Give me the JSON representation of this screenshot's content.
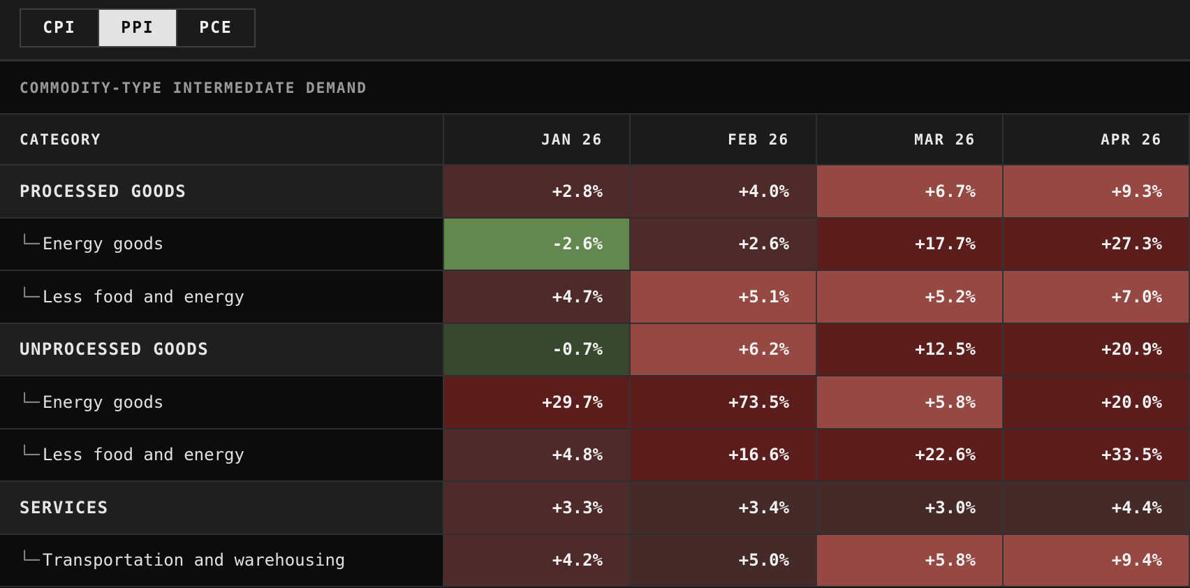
{
  "tabs": [
    {
      "label": "CPI",
      "active": false
    },
    {
      "label": "PPI",
      "active": true
    },
    {
      "label": "PCE",
      "active": false
    }
  ],
  "section_title": "COMMODITY-TYPE INTERMEDIATE DEMAND",
  "columns": {
    "category": "CATEGORY",
    "months": [
      "JAN 26",
      "FEB 26",
      "MAR 26",
      "APR 26"
    ]
  },
  "colors": {
    "mild_red": "#4e2a2a",
    "medium_red": "#964843",
    "deep_red": "#5c1d1d",
    "dark_green": "#38482f",
    "bright_green": "#62884f",
    "neutral": "#452a2a"
  },
  "rows": [
    {
      "label": "PROCESSED GOODS",
      "type": "group",
      "values": [
        "+2.8%",
        "+4.0%",
        "+6.7%",
        "+9.3%"
      ],
      "shades": [
        "m1",
        "m1",
        "m2",
        "m2"
      ]
    },
    {
      "label": "Energy goods",
      "type": "sub",
      "values": [
        "-2.6%",
        "+2.6%",
        "+17.7%",
        "+27.3%"
      ],
      "shades": [
        "g2",
        "m1",
        "m3",
        "m3"
      ]
    },
    {
      "label": "Less food and energy",
      "type": "sub",
      "values": [
        "+4.7%",
        "+5.1%",
        "+5.2%",
        "+7.0%"
      ],
      "shades": [
        "m1",
        "m2",
        "m2",
        "m2"
      ]
    },
    {
      "label": "UNPROCESSED GOODS",
      "type": "group",
      "values": [
        "-0.7%",
        "+6.2%",
        "+12.5%",
        "+20.9%"
      ],
      "shades": [
        "g1",
        "m2",
        "m3",
        "m3"
      ]
    },
    {
      "label": "Energy goods",
      "type": "sub",
      "values": [
        "+29.7%",
        "+73.5%",
        "+5.8%",
        "+20.0%"
      ],
      "shades": [
        "m3",
        "m3",
        "m2",
        "m3"
      ]
    },
    {
      "label": "Less food and energy",
      "type": "sub",
      "values": [
        "+4.8%",
        "+16.6%",
        "+22.6%",
        "+33.5%"
      ],
      "shades": [
        "m1",
        "m3",
        "m3",
        "m3"
      ]
    },
    {
      "label": "SERVICES",
      "type": "group",
      "values": [
        "+3.3%",
        "+3.4%",
        "+3.0%",
        "+4.4%"
      ],
      "shades": [
        "m1",
        "n",
        "n",
        "n"
      ]
    },
    {
      "label": "Transportation and warehousing",
      "type": "sub",
      "values": [
        "+4.2%",
        "+5.0%",
        "+5.8%",
        "+9.4%"
      ],
      "shades": [
        "m1",
        "n",
        "m2",
        "m2"
      ]
    }
  ]
}
